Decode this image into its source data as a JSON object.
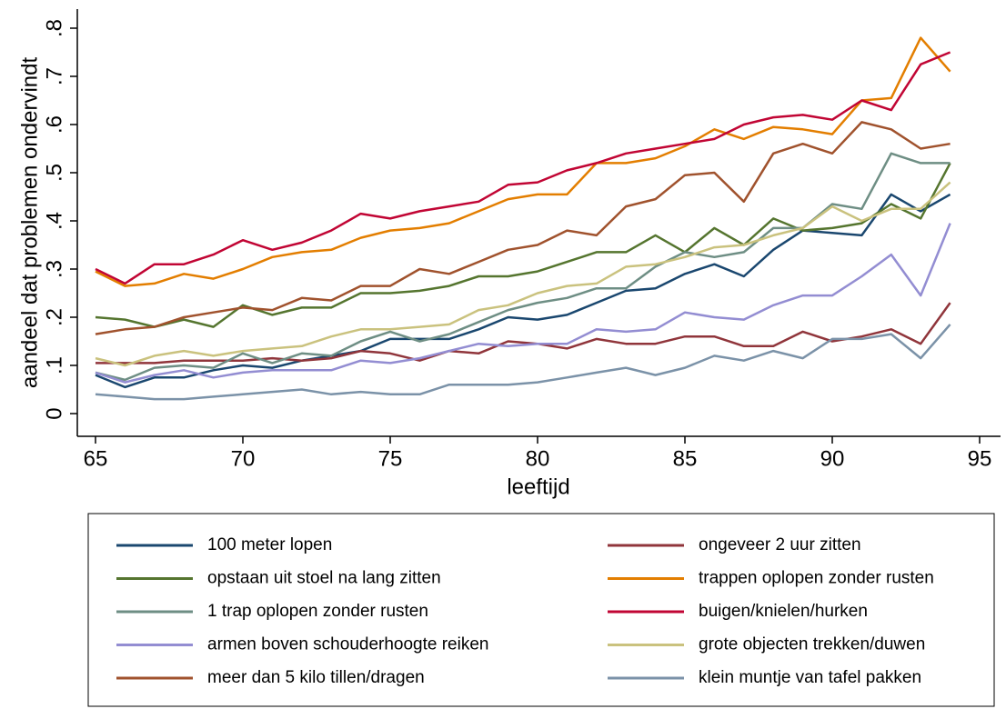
{
  "chart_data": {
    "type": "line",
    "xlabel": "leeftijd",
    "ylabel": "aandeel dat problemen ondervindt",
    "x": [
      65,
      66,
      67,
      68,
      69,
      70,
      71,
      72,
      73,
      74,
      75,
      76,
      77,
      78,
      79,
      80,
      81,
      82,
      83,
      84,
      85,
      86,
      87,
      88,
      89,
      90,
      91,
      92,
      93,
      94
    ],
    "xlim": [
      65,
      95
    ],
    "xticks": [
      65,
      70,
      75,
      80,
      85,
      90,
      95
    ],
    "ylim": [
      0,
      0.8
    ],
    "yticks": [
      0,
      {
        "value": 0.1,
        "label": ".1"
      },
      {
        "value": 0.2,
        "label": ".2"
      },
      {
        "value": 0.3,
        "label": ".3"
      },
      {
        "value": 0.4,
        "label": ".4"
      },
      {
        "value": 0.5,
        "label": ".5"
      },
      {
        "value": 0.6,
        "label": ".6"
      },
      {
        "value": 0.7,
        "label": ".7"
      },
      {
        "value": 0.8,
        "label": ".8"
      }
    ],
    "grid": false,
    "legend": "bottom",
    "series": [
      {
        "name": "100 meter lopen",
        "color": "#1a476f",
        "values": [
          0.08,
          0.055,
          0.075,
          0.075,
          0.09,
          0.1,
          0.095,
          0.11,
          0.12,
          0.13,
          0.155,
          0.155,
          0.155,
          0.175,
          0.2,
          0.195,
          0.205,
          0.23,
          0.255,
          0.26,
          0.29,
          0.31,
          0.285,
          0.34,
          0.38,
          0.375,
          0.37,
          0.455,
          0.42,
          0.455
        ]
      },
      {
        "name": "ongeveer 2 uur zitten",
        "color": "#90353b",
        "values": [
          0.105,
          0.105,
          0.105,
          0.11,
          0.11,
          0.11,
          0.115,
          0.11,
          0.115,
          0.13,
          0.125,
          0.11,
          0.13,
          0.125,
          0.15,
          0.145,
          0.135,
          0.155,
          0.145,
          0.145,
          0.16,
          0.16,
          0.14,
          0.14,
          0.17,
          0.15,
          0.16,
          0.175,
          0.145,
          0.23
        ]
      },
      {
        "name": "opstaan uit stoel na lang zitten",
        "color": "#55752f",
        "values": [
          0.2,
          0.195,
          0.18,
          0.195,
          0.18,
          0.225,
          0.205,
          0.22,
          0.22,
          0.25,
          0.25,
          0.255,
          0.265,
          0.285,
          0.285,
          0.295,
          0.315,
          0.335,
          0.335,
          0.37,
          0.335,
          0.385,
          0.35,
          0.405,
          0.38,
          0.385,
          0.395,
          0.435,
          0.405,
          0.52
        ]
      },
      {
        "name": "trappen oplopen zonder rusten",
        "color": "#e37e00",
        "values": [
          0.295,
          0.265,
          0.27,
          0.29,
          0.28,
          0.3,
          0.325,
          0.335,
          0.34,
          0.365,
          0.38,
          0.385,
          0.395,
          0.42,
          0.445,
          0.455,
          0.455,
          0.52,
          0.52,
          0.53,
          0.555,
          0.59,
          0.57,
          0.595,
          0.59,
          0.58,
          0.65,
          0.655,
          0.78,
          0.71
        ]
      },
      {
        "name": "1 trap oplopen zonder rusten",
        "color": "#6e8e84",
        "values": [
          0.085,
          0.07,
          0.095,
          0.1,
          0.095,
          0.125,
          0.105,
          0.125,
          0.12,
          0.15,
          0.17,
          0.15,
          0.165,
          0.19,
          0.215,
          0.23,
          0.24,
          0.26,
          0.26,
          0.305,
          0.335,
          0.325,
          0.335,
          0.385,
          0.385,
          0.435,
          0.425,
          0.54,
          0.52,
          0.52
        ]
      },
      {
        "name": "buigen/knielen/hurken",
        "color": "#c10534",
        "values": [
          0.3,
          0.27,
          0.31,
          0.31,
          0.33,
          0.36,
          0.34,
          0.355,
          0.38,
          0.415,
          0.405,
          0.42,
          0.43,
          0.44,
          0.475,
          0.48,
          0.505,
          0.52,
          0.54,
          0.55,
          0.56,
          0.57,
          0.6,
          0.615,
          0.62,
          0.61,
          0.65,
          0.63,
          0.725,
          0.75
        ]
      },
      {
        "name": "armen boven schouderhoogte reiken",
        "color": "#938dd2",
        "values": [
          0.085,
          0.065,
          0.08,
          0.09,
          0.075,
          0.085,
          0.09,
          0.09,
          0.09,
          0.11,
          0.105,
          0.115,
          0.13,
          0.145,
          0.14,
          0.145,
          0.145,
          0.175,
          0.17,
          0.175,
          0.21,
          0.2,
          0.195,
          0.225,
          0.245,
          0.245,
          0.285,
          0.33,
          0.245,
          0.395
        ]
      },
      {
        "name": "grote objecten trekken/duwen",
        "color": "#cac27e",
        "values": [
          0.115,
          0.1,
          0.12,
          0.13,
          0.12,
          0.13,
          0.135,
          0.14,
          0.16,
          0.175,
          0.175,
          0.18,
          0.185,
          0.215,
          0.225,
          0.25,
          0.265,
          0.27,
          0.305,
          0.31,
          0.325,
          0.345,
          0.35,
          0.37,
          0.385,
          0.43,
          0.4,
          0.425,
          0.425,
          0.48
        ]
      },
      {
        "name": "meer dan 5 kilo tillen/dragen",
        "color": "#a0522d",
        "values": [
          0.165,
          0.175,
          0.18,
          0.2,
          0.21,
          0.22,
          0.215,
          0.24,
          0.235,
          0.265,
          0.265,
          0.3,
          0.29,
          0.315,
          0.34,
          0.35,
          0.38,
          0.37,
          0.43,
          0.445,
          0.495,
          0.5,
          0.44,
          0.54,
          0.56,
          0.54,
          0.605,
          0.59,
          0.55,
          0.56
        ]
      },
      {
        "name": "klein muntje van tafel pakken",
        "color": "#7b92a8",
        "values": [
          0.04,
          0.035,
          0.03,
          0.03,
          0.035,
          0.04,
          0.045,
          0.05,
          0.04,
          0.045,
          0.04,
          0.04,
          0.06,
          0.06,
          0.06,
          0.065,
          0.075,
          0.085,
          0.095,
          0.08,
          0.095,
          0.12,
          0.11,
          0.13,
          0.115,
          0.155,
          0.155,
          0.165,
          0.115,
          0.185
        ]
      }
    ]
  }
}
